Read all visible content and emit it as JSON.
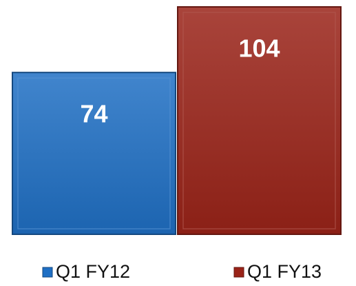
{
  "chart_data": {
    "type": "bar",
    "series": [
      {
        "name": "Q1 FY12",
        "color": "#1f6fc4",
        "values": [
          74
        ]
      },
      {
        "name": "Q1 FY13",
        "color": "#9a2318",
        "values": [
          104
        ]
      }
    ]
  }
}
